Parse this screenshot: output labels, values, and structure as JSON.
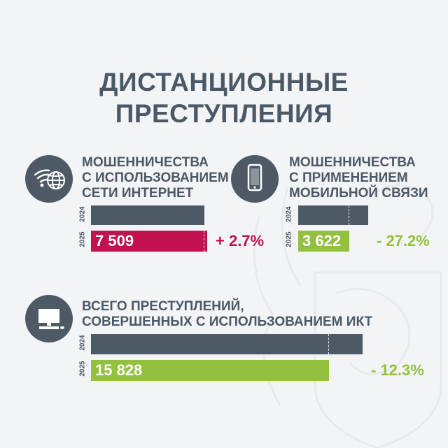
{
  "title": {
    "line1": "ДИСТАНЦИОННЫЕ",
    "line2": "ПРЕСТУПЛЕНИЯ"
  },
  "colors": {
    "dark": "#4d5a66",
    "magenta": "#c0124f",
    "green": "#93c13d"
  },
  "chart_data": [
    {
      "type": "bar",
      "label_lines": [
        "МОШЕННИЧЕСТВА",
        "С ИСПОЛЬЗОВАНИЕМ",
        "СЕТИ ИНТЕРНЕТ"
      ],
      "icon": "wifi-globe-icon",
      "categories": [
        "2024",
        "2025"
      ],
      "values": [
        7312,
        7509
      ],
      "value_label": "7 509",
      "change": "+ 2.7%",
      "color": "#c0124f"
    },
    {
      "type": "bar",
      "label_lines": [
        "МОШЕННИЧЕСТВА",
        "С ПРИМЕНЕНИЕМ",
        "МОБИЛЬНОЙ СВЯЗИ"
      ],
      "icon": "smartphone-icon",
      "categories": [
        "2024",
        "2025"
      ],
      "values": [
        4975,
        3622
      ],
      "value_label": "3 622",
      "change": "- 27.2%",
      "color": "#93c13d"
    },
    {
      "type": "bar",
      "label_lines": [
        "ВСЕГО ПРЕСТУПЛЕНИЙ,",
        "СОВЕРШЕННЫХ С ИСПОЛЬЗОВАНИЕМ ИКТ"
      ],
      "icon": "computer-icon",
      "categories": [
        "2024",
        "2025"
      ],
      "values": [
        18047,
        15828
      ],
      "value_label": "15 828",
      "change": "- 12.3%",
      "color": "#93c13d"
    }
  ]
}
